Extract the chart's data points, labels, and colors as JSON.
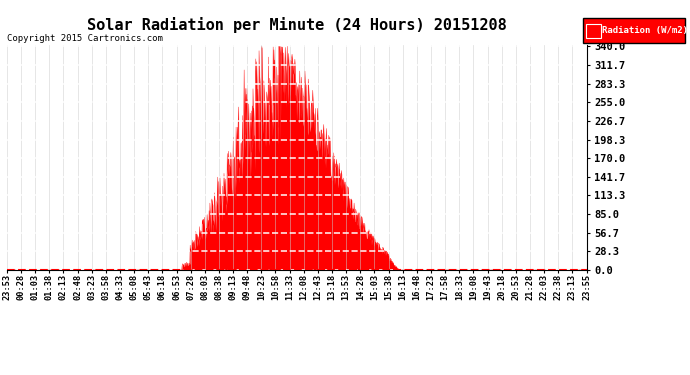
{
  "title": "Solar Radiation per Minute (24 Hours) 20151208",
  "copyright": "Copyright 2015 Cartronics.com",
  "legend_label": "Radiation (W/m2)",
  "bg_color": "#ffffff",
  "plot_bg_color": "#ffffff",
  "fill_color": "#ff0000",
  "line_color": "#ff0000",
  "grid_y_color": "#ffffff",
  "grid_x_color": "#cccccc",
  "yticks": [
    0.0,
    28.3,
    56.7,
    85.0,
    113.3,
    141.7,
    170.0,
    198.3,
    226.7,
    255.0,
    283.3,
    311.7,
    340.0
  ],
  "ymax": 340.0,
  "ymin": 0.0,
  "n_minutes": 1440,
  "sunrise_minute": 435,
  "sunset_minute": 975,
  "peak_minute": 680,
  "peak_value": 340.0,
  "x_tick_labels": [
    "23:53",
    "00:28",
    "01:03",
    "01:38",
    "02:13",
    "02:48",
    "03:23",
    "03:58",
    "04:33",
    "05:08",
    "05:43",
    "06:18",
    "06:53",
    "07:28",
    "08:03",
    "08:38",
    "09:13",
    "09:48",
    "10:23",
    "10:58",
    "11:33",
    "12:08",
    "12:43",
    "13:18",
    "13:53",
    "14:28",
    "15:03",
    "15:38",
    "16:13",
    "16:48",
    "17:23",
    "17:58",
    "18:33",
    "19:08",
    "19:43",
    "20:18",
    "20:53",
    "21:28",
    "22:03",
    "22:38",
    "23:13",
    "23:55"
  ]
}
